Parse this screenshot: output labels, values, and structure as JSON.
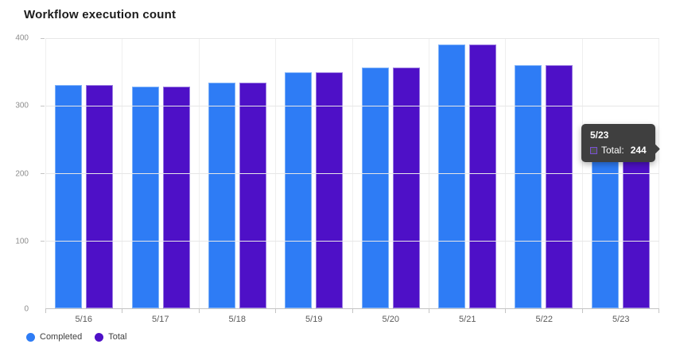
{
  "title": "Workflow execution count",
  "legend": {
    "items": [
      {
        "label": "Completed",
        "color": "#2e7cf5"
      },
      {
        "label": "Total",
        "color": "#4e10c7"
      }
    ]
  },
  "tooltip": {
    "title": "5/23",
    "series_label": "Total:",
    "value": "244",
    "background": "#3f3f3f",
    "swatch_border": "#7a52d6"
  },
  "colors": {
    "completed": "#2e7cf5",
    "total": "#4e10c7",
    "gridline": "#e7e7e7",
    "axis_line": "#c4c4c4"
  },
  "chart_data": {
    "type": "bar",
    "title": "Workflow execution count",
    "categories": [
      "5/16",
      "5/17",
      "5/18",
      "5/19",
      "5/20",
      "5/21",
      "5/22",
      "5/23"
    ],
    "series": [
      {
        "name": "Completed",
        "color": "#2e7cf5",
        "border": "#7fb2f9",
        "values": [
          331,
          328,
          334,
          350,
          357,
          391,
          360,
          244
        ]
      },
      {
        "name": "Total",
        "color": "#4e10c7",
        "border": "#9a7ce0",
        "values": [
          331,
          328,
          334,
          350,
          357,
          391,
          360,
          244
        ]
      }
    ],
    "ylim": [
      0,
      400
    ],
    "yticks": [
      0,
      100,
      200,
      300,
      400
    ],
    "grid": true,
    "legend_position": "bottom-left",
    "tooltip_note": "hover on Total bar of 5/23 showing Total: 244"
  }
}
